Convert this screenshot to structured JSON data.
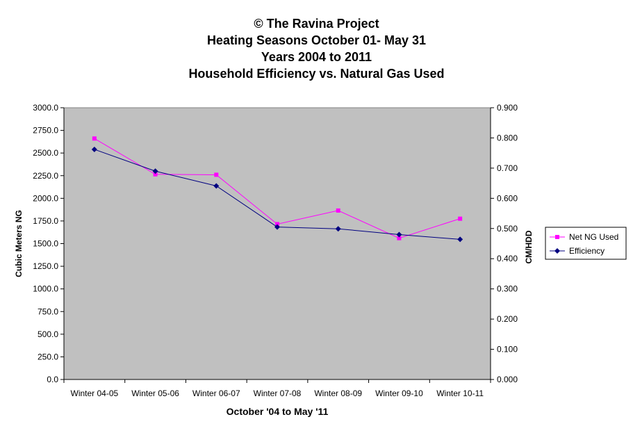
{
  "chart_data": {
    "type": "line",
    "title_lines": [
      "© The Ravina Project",
      "Heating Seasons October 01- May 31",
      "Years 2004 to 2011",
      "Household Efficiency vs. Natural Gas Used"
    ],
    "xlabel": "October '04 to May '11",
    "ylabel": "Cubic Meters NG",
    "y2label": "CM/HDD",
    "categories": [
      "Winter 04-05",
      "Winter 05-06",
      "Winter 06-07",
      "Winter 07-08",
      "Winter 08-09",
      "Winter 09-10",
      "Winter 10-11"
    ],
    "ylim": [
      0,
      3000
    ],
    "y_ticks": [
      "0.0",
      "250.0",
      "500.0",
      "750.0",
      "1000.0",
      "1250.0",
      "1500.0",
      "1750.0",
      "2000.0",
      "2250.0",
      "2500.0",
      "2750.0",
      "3000.0"
    ],
    "y2lim": [
      0,
      0.9
    ],
    "y2_ticks": [
      "0.000",
      "0.100",
      "0.200",
      "0.300",
      "0.400",
      "0.500",
      "0.600",
      "0.700",
      "0.800",
      "0.900"
    ],
    "series": [
      {
        "name": "Net NG Used",
        "axis": "left",
        "color": "#ff00ff",
        "marker": "square",
        "values": [
          2660,
          2265,
          2260,
          1715,
          1865,
          1560,
          1775
        ]
      },
      {
        "name": "Efficiency",
        "axis": "right",
        "color": "#000080",
        "marker": "diamond",
        "values": [
          0.762,
          0.69,
          0.641,
          0.505,
          0.499,
          0.48,
          0.464
        ]
      }
    ],
    "plot_background": "#c0c0c0",
    "grid": false,
    "legend_position": "right"
  }
}
